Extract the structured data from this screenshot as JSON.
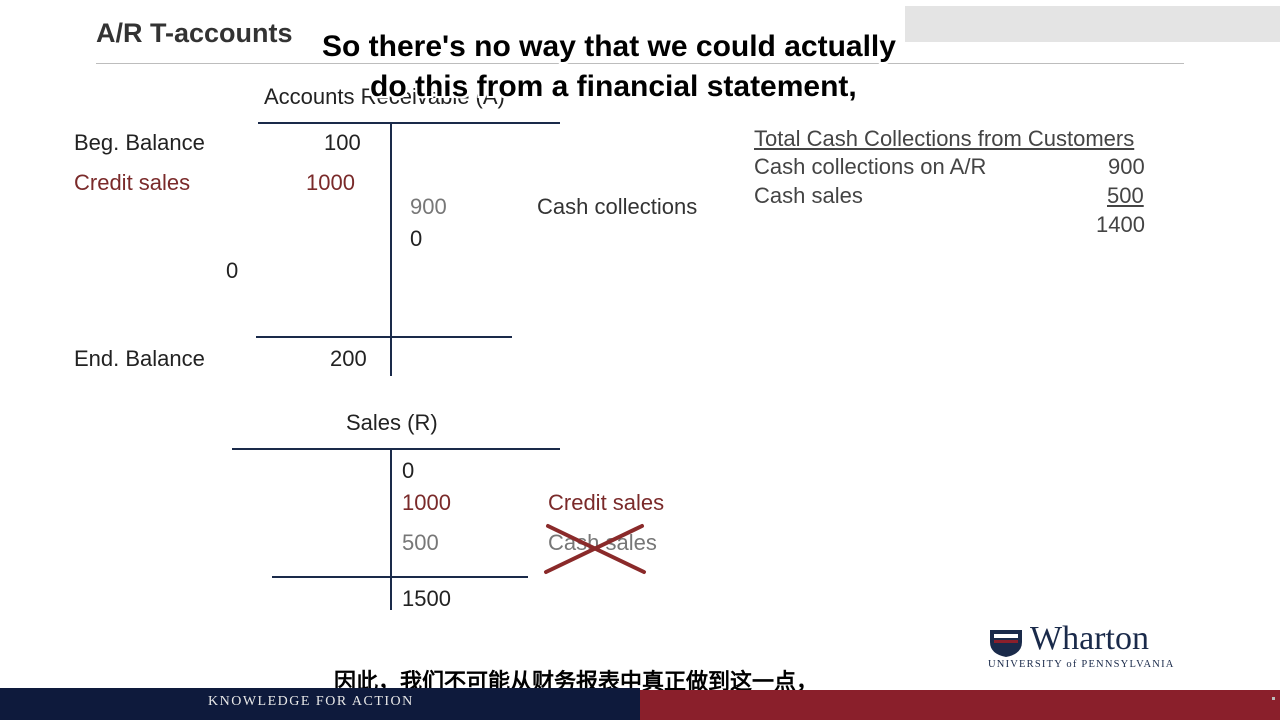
{
  "slide": {
    "title": "A/R T-accounts"
  },
  "subtitles": {
    "en_line1": "So there's no way that we could actually",
    "en_line2": "do this from a financial statement,",
    "cn": "因此，我们不可能从财务报表中真正做到这一点，"
  },
  "ar_account": {
    "header": "Accounts Receivable (A)",
    "beg_label": "Beg. Balance",
    "beg_value": "100",
    "credit_label": "Credit sales",
    "credit_value": "1000",
    "collections_value": "900",
    "collections_label": "Cash collections",
    "right_zero": "0",
    "left_zero": "0",
    "end_label": "End. Balance",
    "end_value": "200"
  },
  "sales_account": {
    "header": "Sales (R)",
    "zero": "0",
    "credit_value": "1000",
    "credit_label": "Credit sales",
    "cash_value": "500",
    "cash_label": "Cash sales",
    "total": "1500"
  },
  "cash_collections": {
    "header": "Total Cash Collections from Customers",
    "rows": [
      {
        "label": "Cash collections on A/R",
        "value": "900"
      },
      {
        "label": "Cash sales",
        "value": "500"
      }
    ],
    "total": "1400"
  },
  "branding": {
    "logo_name": "Wharton",
    "logo_sub": "UNIVERSITY of PENNSYLVANIA",
    "footer_tagline": "KNOWLEDGE FOR ACTION",
    "icon": "wharton-shield-icon"
  },
  "colors": {
    "maroon": "#7a2a2a",
    "navy": "#0e1a3c",
    "footer_red": "#8a1f2b"
  }
}
